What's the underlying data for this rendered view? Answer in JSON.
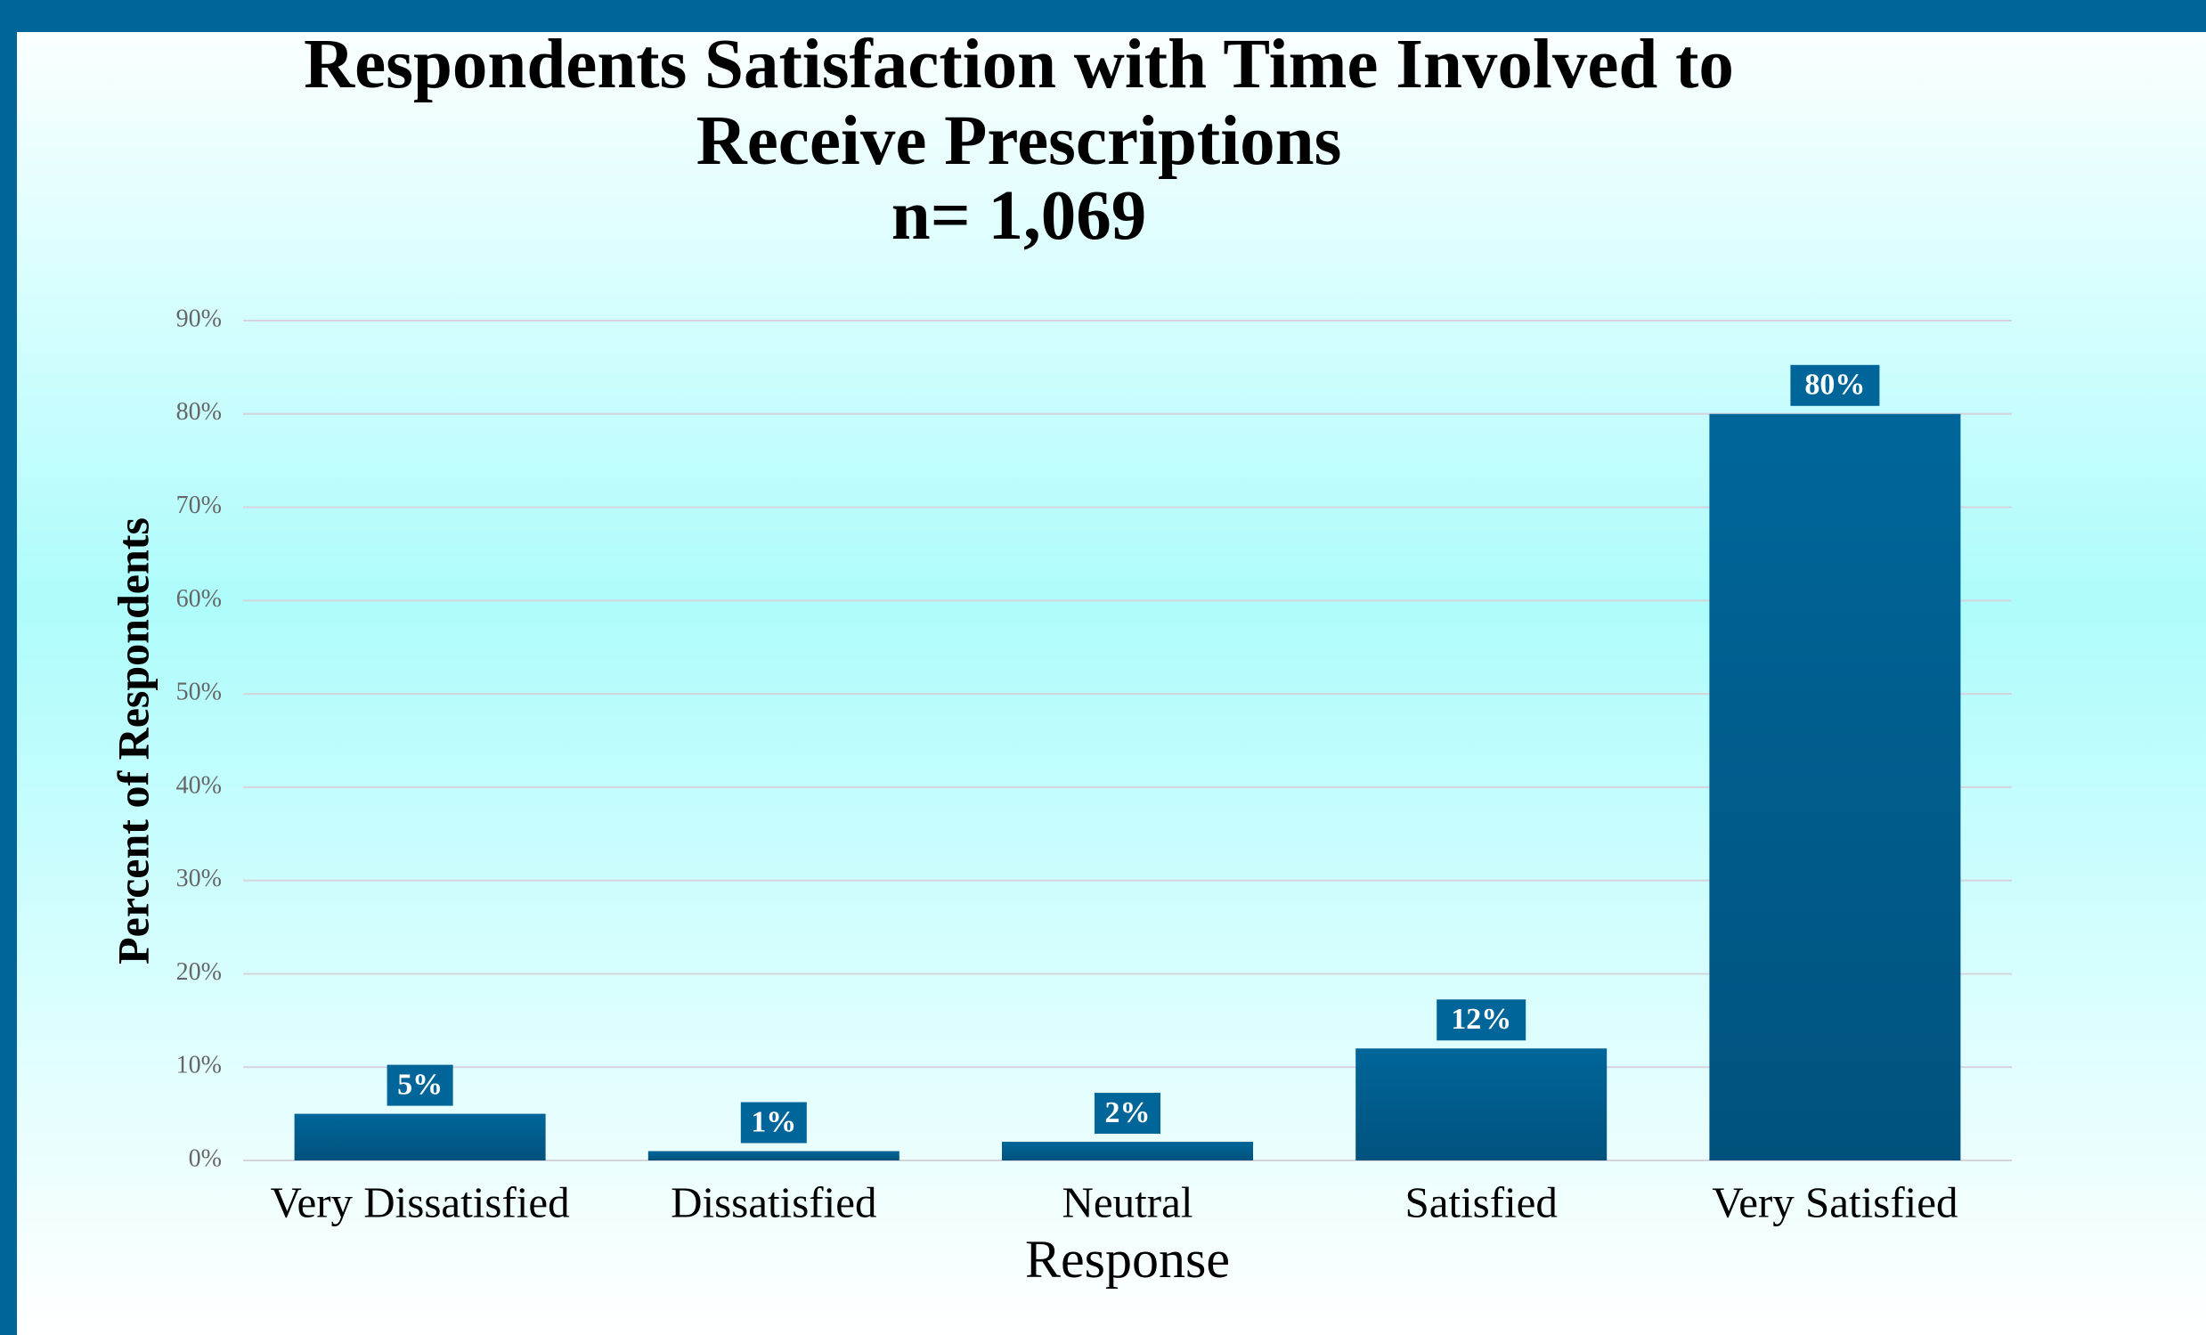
{
  "chart_data": {
    "type": "bar",
    "title": [
      "Respondents Satisfaction with Time Involved to",
      "Receive Prescriptions"
    ],
    "subtitle": "n= 1,069",
    "x_label": "Response",
    "y_label": "Percent of Respondents",
    "categories": [
      "Very Dissatisfied",
      "Dissatisfied",
      "Neutral",
      "Satisfied",
      "Very Satisfied"
    ],
    "values": [
      5,
      1,
      2,
      12,
      80
    ],
    "value_labels": [
      "5%",
      "1%",
      "2%",
      "12%",
      "80%"
    ],
    "color": "#006699",
    "ylim": [
      0,
      90
    ],
    "yticks": [
      {
        "value": 0,
        "label": "0%"
      },
      {
        "value": 10,
        "label": "10%"
      },
      {
        "value": 20,
        "label": "20%"
      },
      {
        "value": 30,
        "label": "30%"
      },
      {
        "value": 40,
        "label": "40%"
      },
      {
        "value": 50,
        "label": "50%"
      },
      {
        "value": 60,
        "label": "60%"
      },
      {
        "value": 70,
        "label": "70%"
      },
      {
        "value": 80,
        "label": "80%"
      },
      {
        "value": 90,
        "label": "90%"
      }
    ],
    "grid": true
  }
}
